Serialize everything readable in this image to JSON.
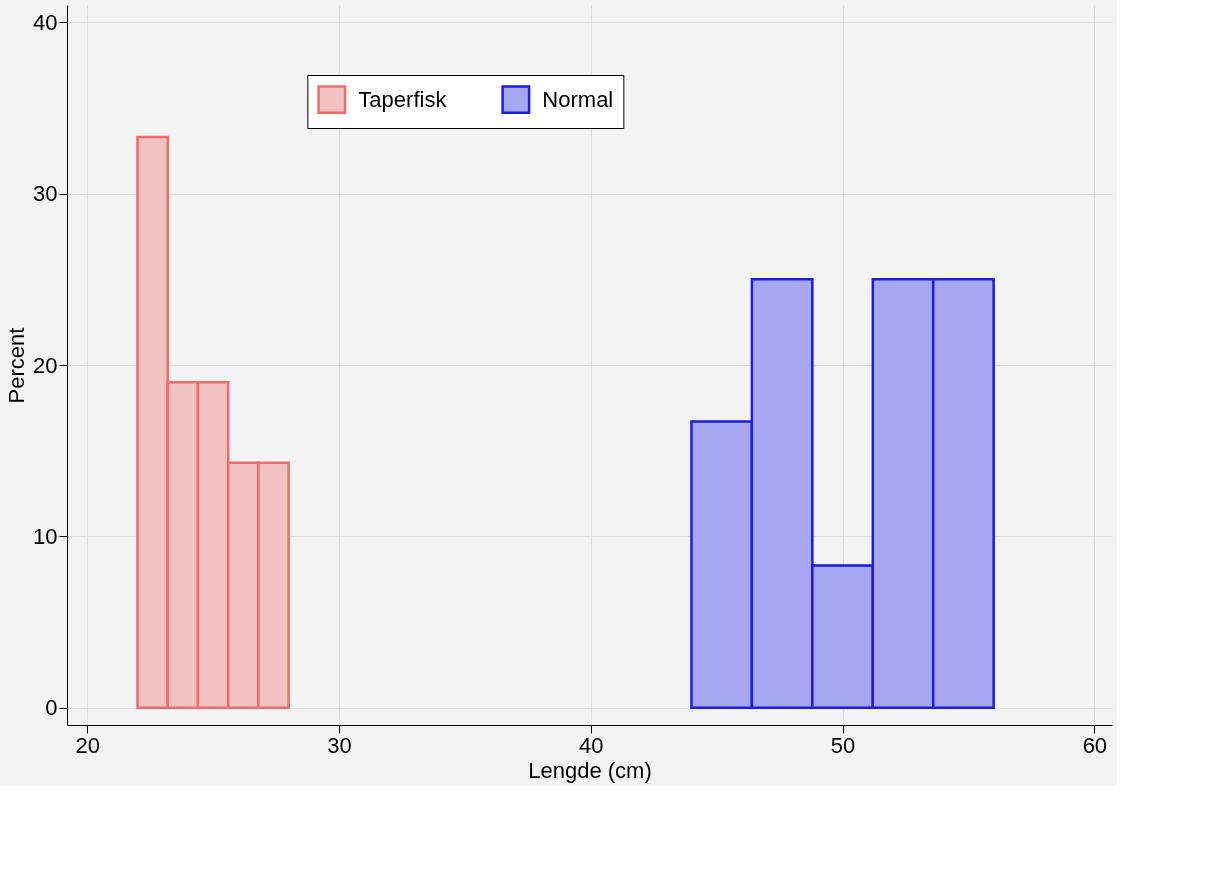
{
  "chart_data": {
    "type": "histogram",
    "xlabel": "Lengde (cm)",
    "ylabel": "Percent",
    "bins": [
      22,
      23.2,
      24.4,
      25.6,
      26.8,
      28,
      44,
      46.4,
      48.8,
      51.2,
      53.6,
      56
    ],
    "series": [
      {
        "name": "Taperfisk",
        "color": "#f26b6b",
        "values": [
          33.3,
          19.0,
          19.0,
          14.3,
          14.3,
          null,
          null,
          null,
          null,
          null,
          null
        ]
      },
      {
        "name": "Normal",
        "color": "#1a1aee",
        "values": [
          null,
          null,
          null,
          null,
          null,
          null,
          16.7,
          25,
          8.3,
          25,
          25
        ]
      }
    ],
    "xlim": [
      19.2,
      60.7
    ],
    "xticks": [
      20,
      30,
      40,
      50,
      60
    ],
    "ylim": [
      -1,
      41
    ],
    "yticks": [
      0,
      10,
      20,
      30,
      40
    ],
    "grid": true,
    "legend": "top"
  }
}
